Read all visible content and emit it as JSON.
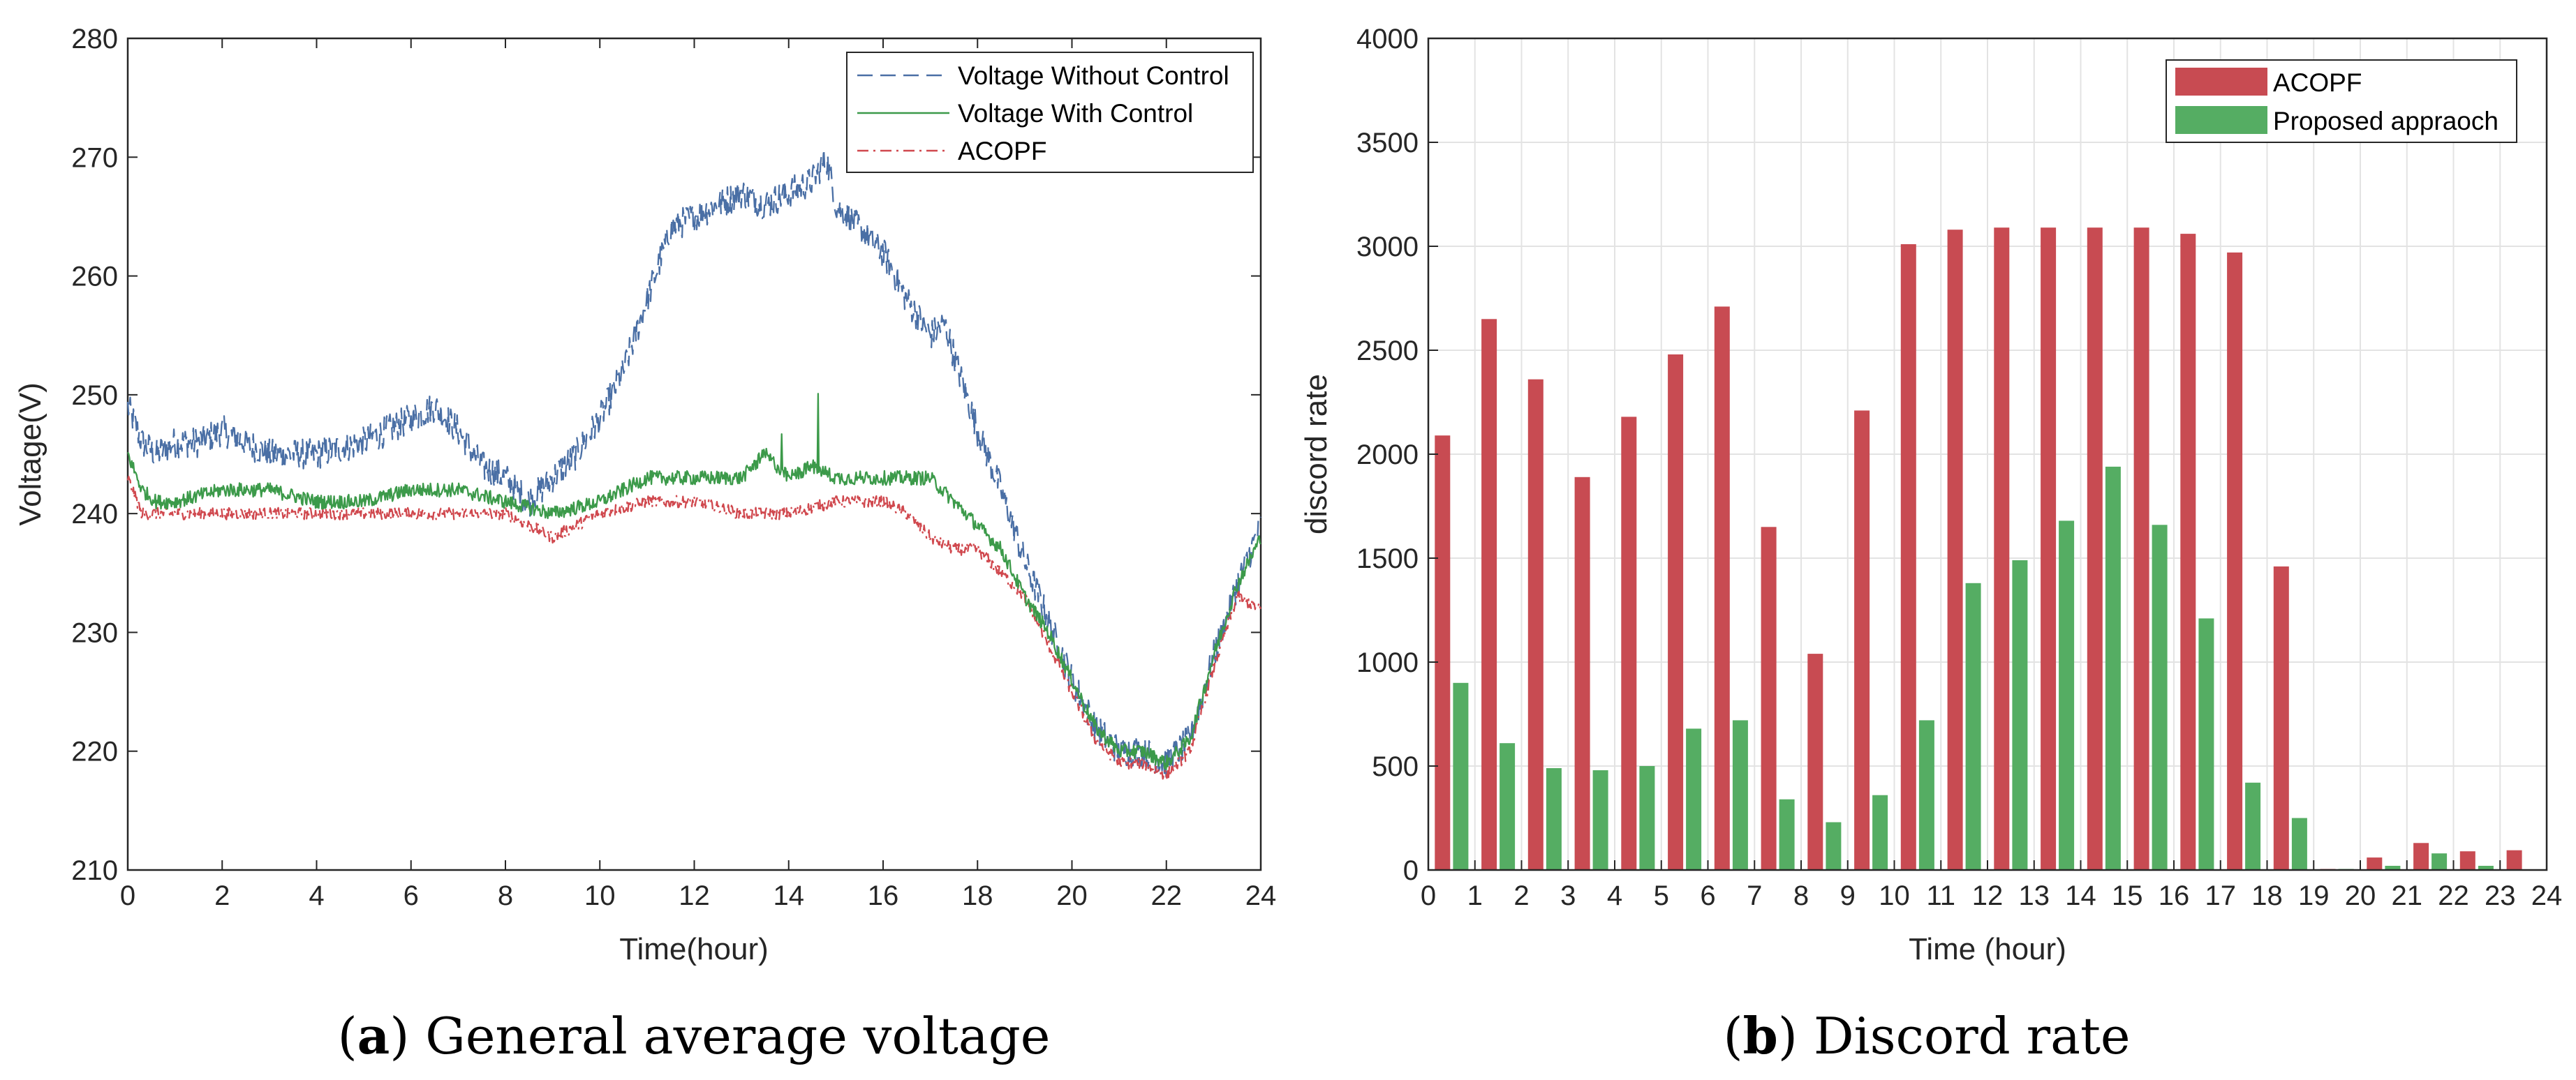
{
  "chart_data": [
    {
      "type": "line",
      "caption_label": "a",
      "caption_text": "General average voltage",
      "xlabel": "Time(hour)",
      "ylabel": "Voltage(V)",
      "xlim": [
        0,
        24
      ],
      "ylim": [
        210,
        280
      ],
      "xticks": [
        "0",
        "2",
        "4",
        "6",
        "8",
        "10",
        "12",
        "14",
        "16",
        "18",
        "20",
        "22",
        "24"
      ],
      "yticks": [
        "210",
        "220",
        "230",
        "240",
        "250",
        "260",
        "270",
        "280"
      ],
      "legend_position": "top-right",
      "series": [
        {
          "name": "Voltage Without Control",
          "color": "#4a6fa5",
          "style": "dashed",
          "x": [
            0,
            0.3,
            0.6,
            1,
            1.5,
            2,
            3,
            4,
            5,
            5.5,
            6,
            6.5,
            7,
            7.5,
            8,
            8.5,
            9,
            9.5,
            10,
            10.5,
            11,
            11.5,
            12,
            12.5,
            13,
            13.5,
            14,
            14.5,
            14.8,
            15,
            15.5,
            16,
            16.5,
            17,
            17.3,
            17.6,
            18,
            18.5,
            19,
            19.5,
            20,
            20.5,
            21,
            21.5,
            22,
            22.5,
            23,
            23.5,
            24
          ],
          "y": [
            249,
            246,
            245,
            246,
            246,
            247,
            245,
            245,
            246,
            247,
            248,
            249,
            247,
            244,
            243,
            241,
            243,
            245,
            248,
            252,
            258,
            264,
            265,
            266,
            267,
            266,
            267,
            268,
            270,
            266,
            264,
            262,
            258,
            255,
            256,
            252,
            247,
            242,
            236,
            231,
            226,
            222,
            220,
            220,
            219,
            221,
            228,
            234,
            239
          ]
        },
        {
          "name": "Voltage With Control",
          "color": "#3c9a4a",
          "style": "solid",
          "x": [
            0,
            0.3,
            0.6,
            1,
            2,
            3,
            4,
            5,
            6,
            7,
            8,
            9,
            10,
            11,
            12,
            13,
            13.5,
            14,
            14.5,
            15,
            16,
            17,
            17.5,
            18,
            18.5,
            19,
            19.5,
            20,
            20.5,
            21,
            21.5,
            22,
            22.5,
            23,
            23.5,
            24
          ],
          "y": [
            245,
            242,
            241,
            241,
            242,
            242,
            241,
            241,
            242,
            242,
            241,
            240,
            241,
            243,
            243,
            243,
            245,
            243,
            244,
            243,
            243,
            243,
            241,
            239,
            237,
            233,
            230,
            226,
            222,
            220,
            220,
            219,
            221,
            228,
            234,
            238
          ]
        },
        {
          "name": "ACOPF",
          "color": "#d0484e",
          "style": "dashdot",
          "x": [
            0,
            0.3,
            1,
            2,
            3,
            4,
            5,
            6,
            7,
            8,
            9,
            10,
            11,
            12,
            13,
            14,
            15,
            16,
            16.5,
            17,
            17.5,
            18,
            18.5,
            19,
            19.5,
            20,
            20.5,
            21,
            21.5,
            22,
            22.5,
            23,
            23.5,
            24
          ],
          "y": [
            243,
            240,
            240,
            240,
            240,
            240,
            240,
            240,
            240,
            240,
            238,
            240,
            241,
            241,
            240,
            240,
            241,
            241,
            240,
            238,
            237,
            237,
            235,
            233,
            229,
            225,
            221,
            219,
            219,
            218,
            220,
            227,
            233,
            232
          ]
        }
      ]
    },
    {
      "type": "bar",
      "caption_label": "b",
      "caption_text": "Discord rate",
      "xlabel": "Time (hour)",
      "ylabel": "discord rate",
      "xlim": [
        0,
        24
      ],
      "ylim": [
        0,
        4000
      ],
      "grid": true,
      "xticks": [
        "0",
        "1",
        "2",
        "3",
        "4",
        "5",
        "6",
        "7",
        "8",
        "9",
        "10",
        "11",
        "12",
        "13",
        "14",
        "15",
        "16",
        "17",
        "18",
        "19",
        "20",
        "21",
        "22",
        "23",
        "24"
      ],
      "yticks": [
        "0",
        "500",
        "1000",
        "1500",
        "2000",
        "2500",
        "3000",
        "3500",
        "4000"
      ],
      "legend_position": "top-right",
      "categories": [
        "0",
        "1",
        "2",
        "3",
        "4",
        "5",
        "6",
        "7",
        "8",
        "9",
        "10",
        "11",
        "12",
        "13",
        "14",
        "15",
        "16",
        "17",
        "18",
        "19",
        "20",
        "21",
        "22",
        "23"
      ],
      "series": [
        {
          "name": "ACOPF",
          "color": "#c84b52",
          "values": [
            2090,
            2650,
            2360,
            1890,
            2180,
            2480,
            2710,
            1650,
            1040,
            2210,
            3010,
            3080,
            3090,
            3090,
            3090,
            3090,
            3060,
            2970,
            1460,
            5,
            60,
            130,
            90,
            95
          ]
        },
        {
          "name": "Proposed appraoch",
          "color": "#55ad63",
          "values": [
            900,
            610,
            490,
            480,
            500,
            680,
            720,
            340,
            230,
            360,
            720,
            1380,
            1490,
            1680,
            1940,
            1660,
            1210,
            420,
            250,
            5,
            20,
            80,
            20,
            0
          ]
        }
      ]
    }
  ]
}
